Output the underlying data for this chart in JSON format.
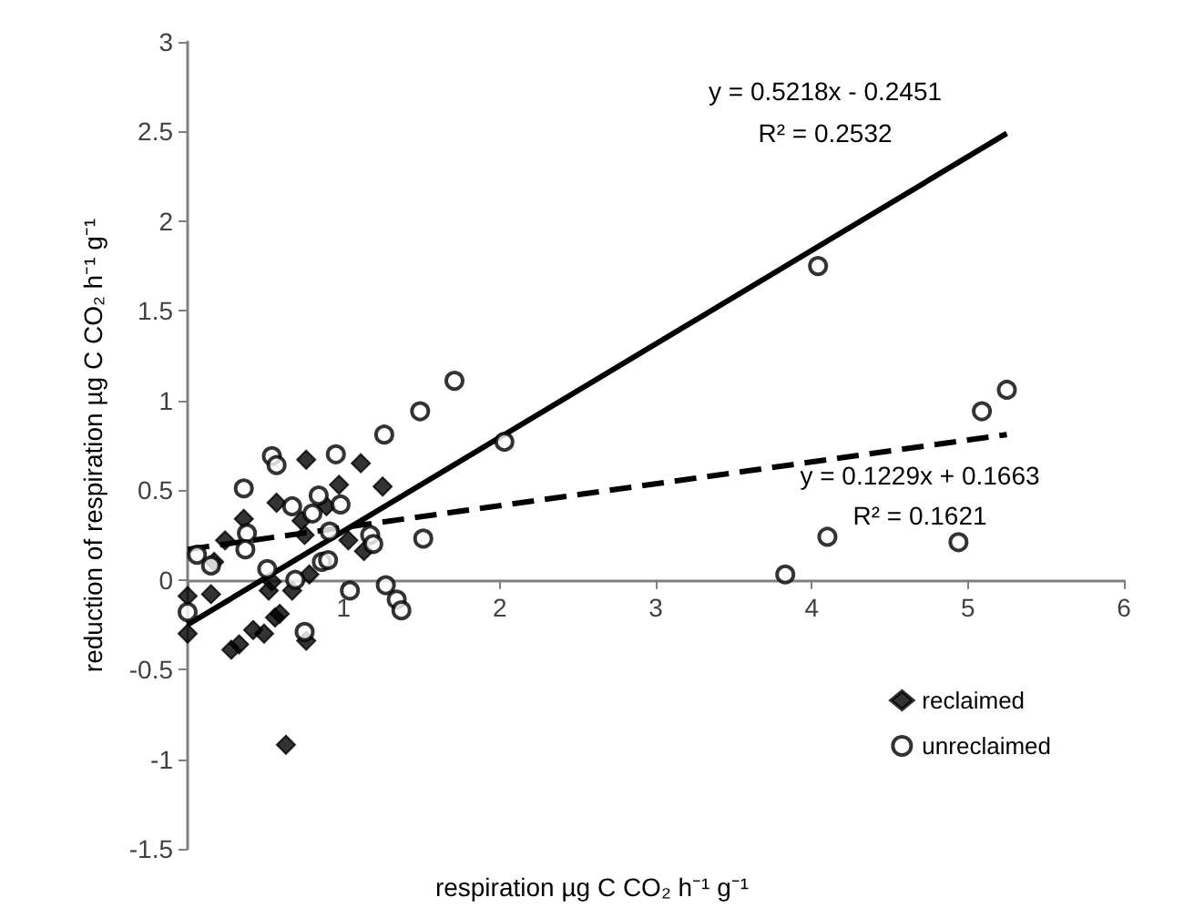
{
  "chart_data": {
    "type": "scatter",
    "xlabel": "respiration µg C CO₂ h⁻¹ g⁻¹",
    "ylabel": "reduction of respiration µg C CO₂ h⁻¹ g⁻¹",
    "xlim": [
      0,
      6
    ],
    "xticks": [
      {
        "value": 0,
        "label": null
      },
      1,
      2,
      3,
      4,
      5,
      6
    ],
    "ylim": [
      -1.5,
      3
    ],
    "yticks": [
      -1.5,
      -1,
      -0.5,
      0,
      0.5,
      1,
      1.5,
      2,
      2.5,
      3
    ],
    "legend": "bottom right",
    "series": [
      {
        "name": "reclaimed",
        "marker": "diamond",
        "color": "#000000",
        "x": [
          0,
          0,
          0.15,
          0.17,
          0.24,
          0.36,
          0.57,
          0.76,
          0.73,
          0.75,
          0.89,
          0.97,
          1.11,
          1.25,
          1.03,
          1.13,
          0.78,
          0.67,
          0.54,
          0.52,
          0.59,
          0.56,
          0.42,
          0.49,
          0.33,
          0.28,
          0.76,
          0.63
        ],
        "values": [
          -0.09,
          -0.3,
          -0.08,
          0.1,
          0.22,
          0.34,
          0.43,
          0.67,
          0.33,
          0.25,
          0.41,
          0.53,
          0.65,
          0.52,
          0.22,
          0.16,
          0.03,
          -0.06,
          -0.01,
          -0.06,
          -0.19,
          -0.21,
          -0.28,
          -0.3,
          -0.36,
          -0.39,
          -0.34,
          -0.92
        ]
      },
      {
        "name": "unreclaimed",
        "marker": "circle",
        "color": "#000000",
        "x": [
          0,
          0.06,
          0.15,
          0.36,
          0.38,
          0.37,
          0.54,
          0.57,
          0.51,
          0.67,
          0.8,
          0.84,
          0.95,
          0.98,
          0.91,
          0.86,
          0.9,
          0.69,
          0.75,
          1.04,
          1.17,
          1.19,
          1.26,
          1.27,
          1.34,
          1.37,
          1.49,
          1.51,
          1.71,
          2.03,
          4.04,
          5.09,
          5.25,
          4.1,
          4.94,
          3.83
        ],
        "values": [
          -0.18,
          0.14,
          0.08,
          0.51,
          0.26,
          0.17,
          0.69,
          0.64,
          0.06,
          0.41,
          0.37,
          0.47,
          0.7,
          0.42,
          0.27,
          0.1,
          0.11,
          0,
          -0.29,
          -0.06,
          0.25,
          0.2,
          0.81,
          -0.03,
          -0.11,
          -0.17,
          0.94,
          0.23,
          1.11,
          0.77,
          1.75,
          0.94,
          1.06,
          0.24,
          0.21,
          0.03
        ]
      },
      {
        "type": "line",
        "line_style": "solid",
        "color": "#000000",
        "x": [
          0,
          5.25
        ],
        "values": [
          -0.25,
          2.49
        ]
      },
      {
        "type": "line",
        "line_style": "dashed",
        "color": "#000000",
        "x": [
          0,
          5.25
        ],
        "values": [
          0.17,
          0.81
        ]
      }
    ],
    "annotations": [
      "y = 0.5218x - 0.2451",
      "R² = 0.2532",
      "y = 0.1229x + 0.1663",
      "R² = 0.1621"
    ]
  }
}
